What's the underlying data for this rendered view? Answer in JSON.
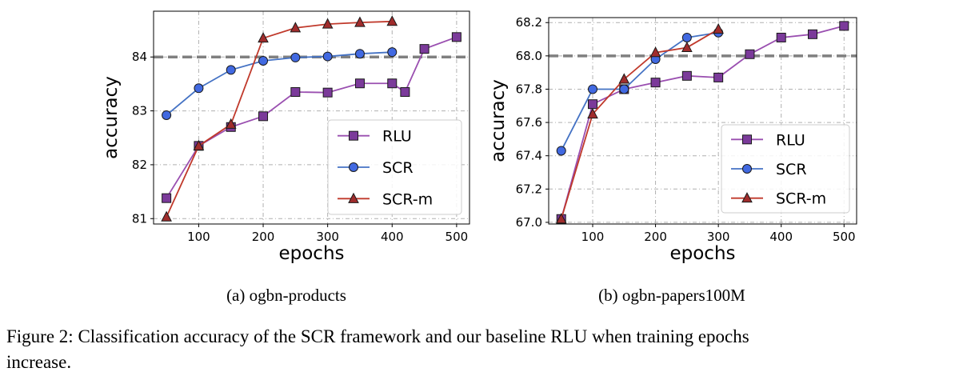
{
  "figure": {
    "caption_line1": "Figure 2: Classification accuracy of the SCR framework and our baseline RLU when training epochs",
    "caption_line2": "increase."
  },
  "colors": {
    "RLU": "#9a4fb0",
    "SCR": "#4472c4",
    "SCR-m": "#c0392b",
    "RLU_marker": "#7b3a9a",
    "SCR_marker": "#4169e1",
    "SCR-m_marker": "#a02c2c",
    "reference": "#808080",
    "grid": "#b0b0b0"
  },
  "chart_data": [
    {
      "type": "line",
      "subcaption": "(a) ogbn-products",
      "xlabel": "epochs",
      "ylabel": "accuracy",
      "xlim": [
        30,
        520
      ],
      "ylim": [
        80.9,
        84.85
      ],
      "xticks": [
        100,
        200,
        300,
        400,
        500
      ],
      "yticks": [
        81,
        82,
        83,
        84
      ],
      "grid": true,
      "legend_placement": "lower-right",
      "reference_line": {
        "y": 84.0,
        "style": "dashed"
      },
      "series": [
        {
          "name": "RLU",
          "marker": "square",
          "x": [
            50,
            100,
            150,
            200,
            250,
            300,
            350,
            400,
            420,
            450,
            500
          ],
          "y": [
            81.38,
            82.35,
            82.7,
            82.9,
            83.35,
            83.34,
            83.51,
            83.51,
            83.35,
            84.15,
            84.37
          ]
        },
        {
          "name": "SCR",
          "marker": "circle",
          "x": [
            50,
            100,
            150,
            200,
            250,
            300,
            350,
            400
          ],
          "y": [
            82.92,
            83.42,
            83.76,
            83.93,
            83.99,
            84.01,
            84.06,
            84.09
          ]
        },
        {
          "name": "SCR-m",
          "marker": "triangle",
          "x": [
            50,
            100,
            150,
            200,
            250,
            300,
            350,
            400
          ],
          "y": [
            81.03,
            82.35,
            82.75,
            84.35,
            84.54,
            84.61,
            84.64,
            84.66
          ]
        }
      ]
    },
    {
      "type": "line",
      "subcaption": "(b) ogbn-papers100M",
      "xlabel": "epochs",
      "ylabel": "accuracy",
      "xlim": [
        30,
        520
      ],
      "ylim": [
        66.99,
        68.23
      ],
      "xticks": [
        100,
        200,
        300,
        400,
        500
      ],
      "yticks": [
        "67.0",
        "67.2",
        "67.4",
        "67.6",
        "67.8",
        "68.0",
        "68.2"
      ],
      "grid": true,
      "legend_placement": "lower-right",
      "reference_line": {
        "y": 68.0,
        "style": "dashed"
      },
      "series": [
        {
          "name": "RLU",
          "marker": "square",
          "x": [
            50,
            100,
            150,
            200,
            250,
            300,
            350,
            400,
            450,
            500
          ],
          "y": [
            67.02,
            67.71,
            67.8,
            67.84,
            67.88,
            67.87,
            68.01,
            68.11,
            68.13,
            68.18
          ]
        },
        {
          "name": "SCR",
          "marker": "circle",
          "x": [
            50,
            100,
            150,
            200,
            250,
            300
          ],
          "y": [
            67.43,
            67.8,
            67.8,
            67.98,
            68.11,
            68.14
          ]
        },
        {
          "name": "SCR-m",
          "marker": "triangle",
          "x": [
            50,
            100,
            150,
            200,
            250,
            300
          ],
          "y": [
            67.02,
            67.65,
            67.86,
            68.02,
            68.05,
            68.16
          ]
        }
      ]
    }
  ]
}
